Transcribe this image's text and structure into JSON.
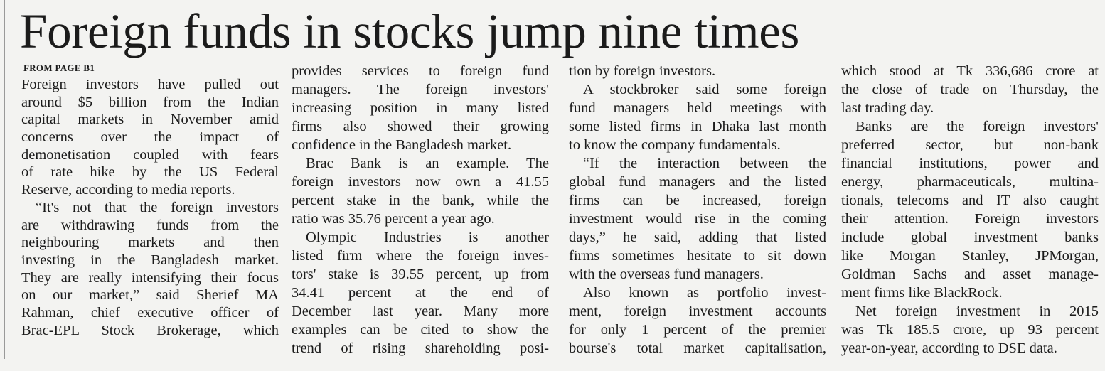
{
  "headline": "Foreign funds in stocks jump nine times",
  "kicker": "FROM PAGE B1",
  "columns": [
    {
      "paragraphs": [
        {
          "lines": [
            "Foreign investors have pulled out",
            "around $5 billion from the Indian",
            "capital markets in November amid",
            "concerns over the impact of",
            "demonetisation coupled with fears",
            "of rate hike by the US Federal",
            "Reserve, according to media reports."
          ]
        },
        {
          "lines": [
            "“It's not that the foreign investors",
            "are withdrawing funds from the",
            "neighbouring markets and then",
            "investing in the Bangladesh market.",
            "They are really intensifying their focus",
            "on our market,” said Sherief MA",
            "Rahman, chief executive officer of",
            "Brac-EPL Stock Brokerage, which"
          ]
        }
      ]
    },
    {
      "paragraphs": [
        {
          "lines": [
            "provides services to foreign fund",
            "managers. The foreign investors'",
            "increasing position in many listed",
            "firms also showed their growing",
            "confidence in the Bangladesh market."
          ]
        },
        {
          "lines": [
            "Brac Bank is an example. The",
            "foreign investors now own a 41.55",
            "percent stake in the bank, while the",
            "ratio was 35.76 percent a year ago."
          ]
        },
        {
          "lines": [
            "Olympic Industries is another",
            "listed firm where the foreign inves-",
            "tors' stake is 39.55 percent, up from",
            "34.41 percent at the end of",
            "December last year. Many more",
            "examples can be cited to show the",
            "trend of rising shareholding posi-"
          ]
        }
      ]
    },
    {
      "paragraphs": [
        {
          "lines": [
            "tion by foreign investors."
          ]
        },
        {
          "lines": [
            "A stockbroker said some foreign",
            "fund managers held meetings with",
            "some listed firms in Dhaka last month",
            "to know the company fundamentals."
          ]
        },
        {
          "lines": [
            "“If the interaction between the",
            "global fund managers and the listed",
            "firms can be increased, foreign",
            "investment would rise in the coming",
            "days,” he said, adding that listed",
            "firms sometimes hesitate to sit down",
            "with the overseas fund managers."
          ]
        },
        {
          "lines": [
            "Also known as portfolio invest-",
            "ment, foreign investment accounts",
            "for only 1 percent of the premier",
            "bourse's total market capitalisation,"
          ]
        }
      ]
    },
    {
      "paragraphs": [
        {
          "lines": [
            "which stood at Tk 336,686 crore at",
            "the close of trade on Thursday, the",
            "last trading day."
          ]
        },
        {
          "lines": [
            "Banks are the foreign investors'",
            "preferred sector, but non-bank",
            "financial institutions, power and",
            "energy, pharmaceuticals, multina-",
            "tionals, telecoms and IT also caught",
            "their attention. Foreign investors",
            "include global investment banks",
            "like Morgan Stanley, JPMorgan,",
            "Goldman Sachs and asset manage-",
            "ment firms like BlackRock."
          ]
        },
        {
          "lines": [
            "Net foreign investment in 2015",
            "was Tk 185.5 crore, up 93 percent",
            "year-on-year, according to DSE data."
          ]
        }
      ]
    }
  ]
}
